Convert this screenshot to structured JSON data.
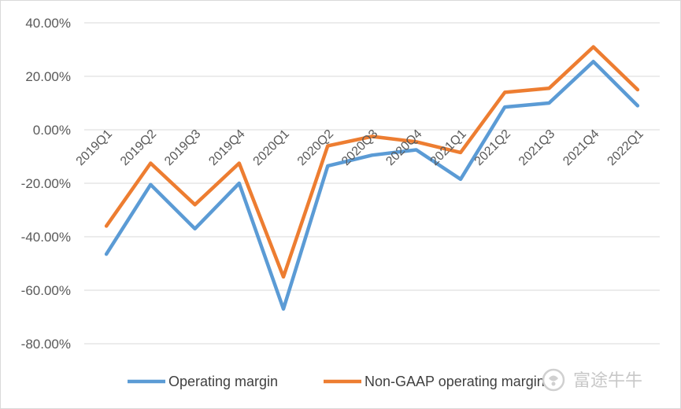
{
  "chart_data": {
    "type": "line",
    "categories": [
      "2019Q1",
      "2019Q2",
      "2019Q3",
      "2019Q4",
      "2020Q1",
      "2020Q2",
      "2020Q3",
      "2020Q4",
      "2021Q1",
      "2021Q2",
      "2021Q3",
      "2021Q4",
      "2022Q1"
    ],
    "series": [
      {
        "name": "Operating margin",
        "color": "#5b9bd5",
        "values": [
          -46.5,
          -20.5,
          -37.0,
          -20.0,
          -67.0,
          -13.5,
          -9.5,
          -7.5,
          -18.5,
          8.5,
          10.0,
          25.5,
          9.0
        ]
      },
      {
        "name": "Non-GAAP operating margin",
        "color": "#ed7d31",
        "values": [
          -36.0,
          -12.5,
          -28.0,
          -12.5,
          -55.0,
          -6.0,
          -2.5,
          -4.5,
          -8.5,
          14.0,
          15.5,
          31.0,
          15.0
        ]
      }
    ],
    "ylim": [
      -80,
      40
    ],
    "yticks": [
      "40.00%",
      "20.00%",
      "0.00%",
      "-20.00%",
      "-40.00%",
      "-60.00%",
      "-80.00%"
    ],
    "ytick_values": [
      40,
      20,
      0,
      -20,
      -40,
      -60,
      -80
    ],
    "grid": true,
    "legend_position": "bottom"
  },
  "watermark": {
    "text": "富途牛牛",
    "icon": "futu-logo-icon"
  }
}
